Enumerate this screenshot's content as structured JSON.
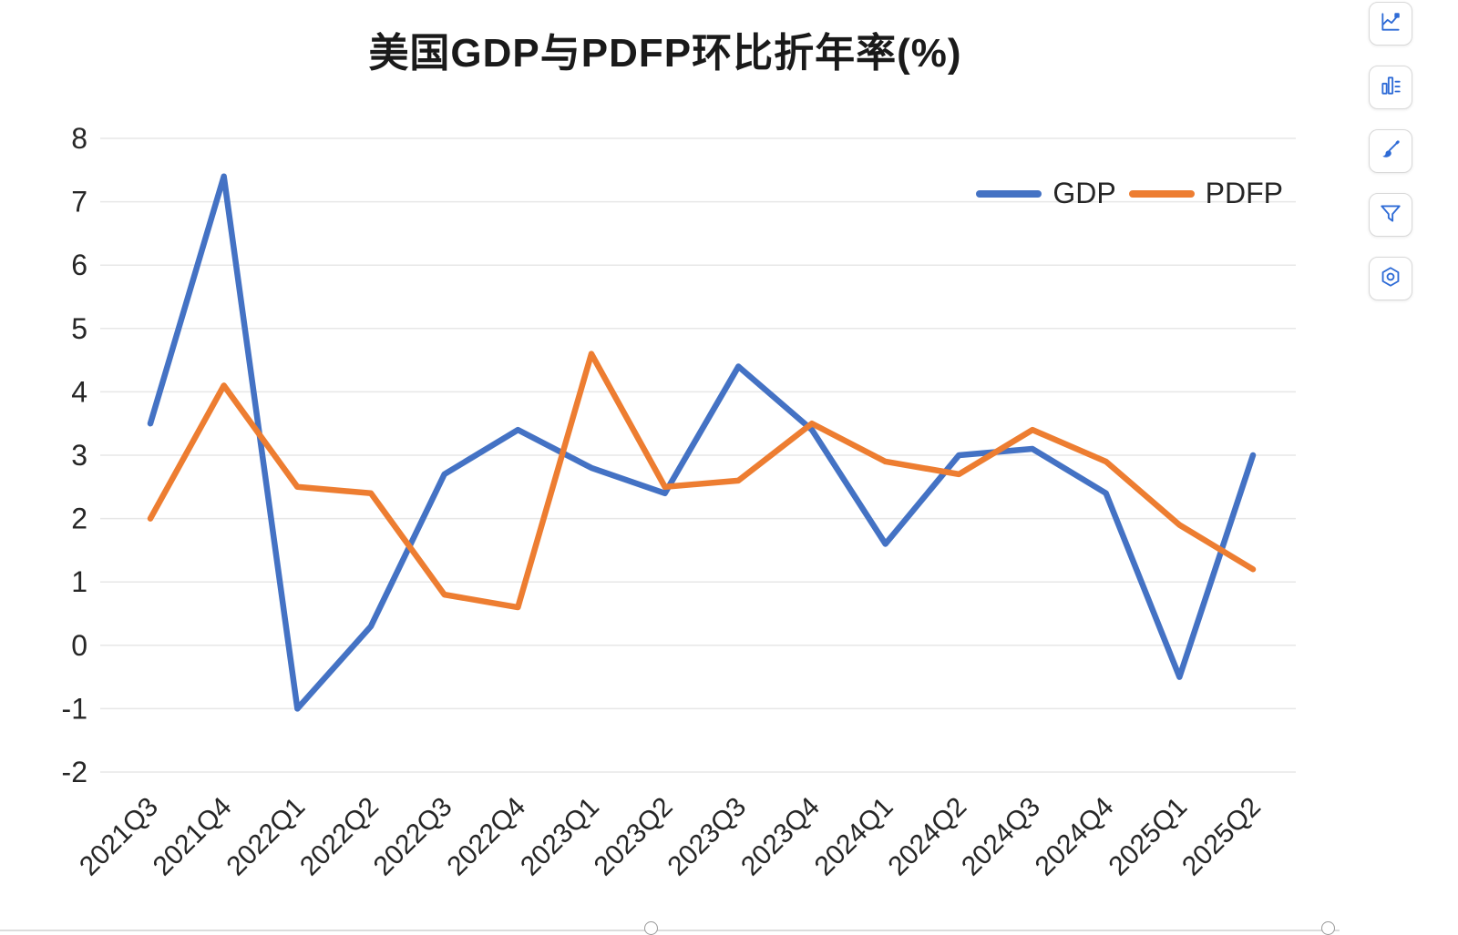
{
  "title": "美国GDP与PDFP环比折年率(%)",
  "chart_data": {
    "type": "line",
    "title": "美国GDP与PDFP环比折年率(%)",
    "categories": [
      "2021Q3",
      "2021Q4",
      "2022Q1",
      "2022Q2",
      "2022Q3",
      "2022Q4",
      "2023Q1",
      "2023Q2",
      "2023Q3",
      "2023Q4",
      "2024Q1",
      "2024Q2",
      "2024Q3",
      "2024Q4",
      "2025Q1",
      "2025Q2"
    ],
    "series": [
      {
        "name": "GDP",
        "color": "#4472c4",
        "values": [
          3.5,
          7.4,
          -1.0,
          0.3,
          2.7,
          3.4,
          2.8,
          2.4,
          4.4,
          3.4,
          1.6,
          3.0,
          3.1,
          2.4,
          -0.5,
          3.0
        ]
      },
      {
        "name": "PDFP",
        "color": "#ed7d31",
        "values": [
          2.0,
          4.1,
          2.5,
          2.4,
          0.8,
          0.6,
          4.6,
          2.5,
          2.6,
          3.5,
          2.9,
          2.7,
          3.4,
          2.9,
          1.9,
          1.2
        ]
      }
    ],
    "ylim": [
      -2,
      8
    ],
    "ytick_step": 1,
    "grid": true,
    "legend_position": "top-right",
    "xlabel": "",
    "ylabel": ""
  },
  "style": {
    "grid_color": "#e7e7e7",
    "axis_text_color": "#262626",
    "icon_color": "#2e6bd6"
  },
  "toolbar": {
    "icons": [
      "chart-style-icon",
      "bar-chart-icon",
      "paintbrush-icon",
      "filter-icon",
      "settings-icon"
    ]
  }
}
